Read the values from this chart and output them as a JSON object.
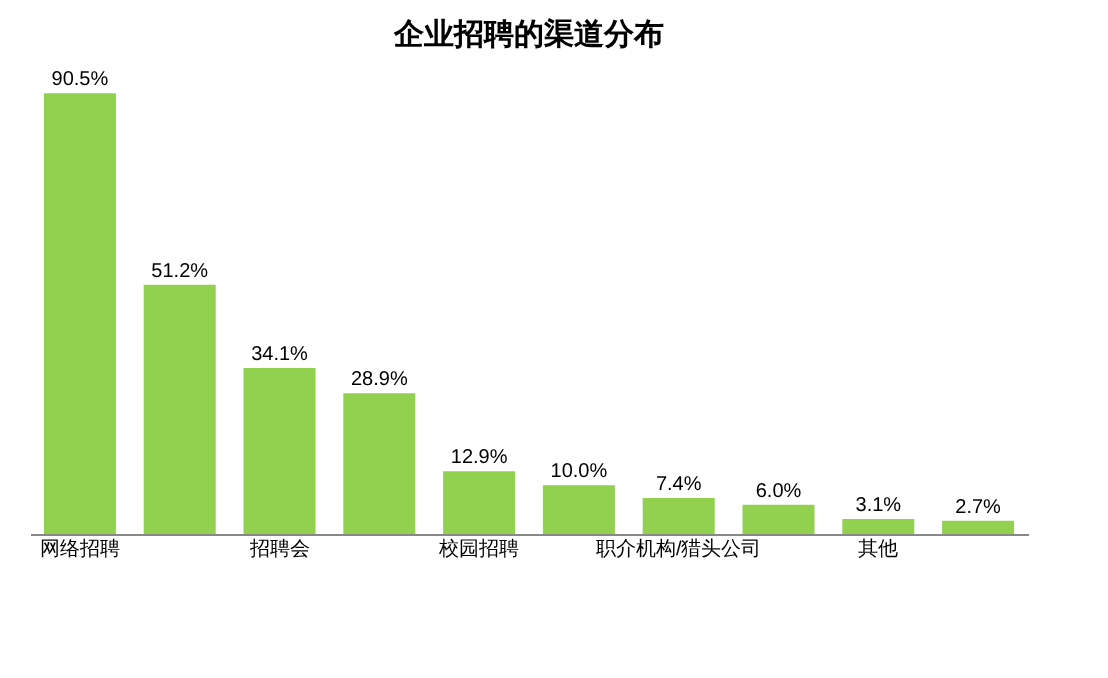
{
  "chart_data": {
    "type": "bar",
    "title": "企业招聘的渠道分布",
    "categories": [
      "网络招聘",
      null,
      "招聘会",
      null,
      "校园招聘",
      null,
      "职介机构/猎头公司",
      null,
      "其他",
      null
    ],
    "values": [
      90.5,
      51.2,
      34.1,
      28.9,
      12.9,
      10.0,
      7.4,
      6.0,
      3.1,
      2.7
    ],
    "value_labels": [
      "90.5%",
      "51.2%",
      "34.1%",
      "28.9%",
      "12.9%",
      "10.0%",
      "7.4%",
      "6.0%",
      "3.1%",
      "2.7%"
    ],
    "color": "#92d050",
    "grid": false
  }
}
